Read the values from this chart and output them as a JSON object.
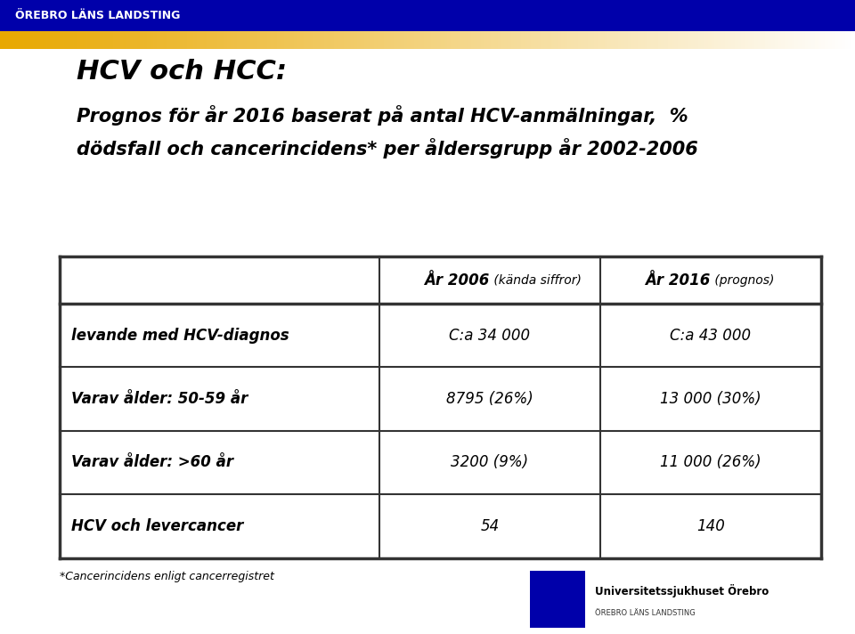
{
  "title_line1": "HCV och HCC:",
  "title_line2": "Prognos för år 2016 baserat på antal HCV-anmälningar,  %",
  "title_line3": "dödsfall och cancerincidens* per åldersgrupp år 2002-2006",
  "header_col2_bold": "År 2006",
  "header_col2_italic": " (kända siffror)",
  "header_col3_bold": "År 2016",
  "header_col3_italic": " (prognos)",
  "rows": [
    [
      "levande med HCV-diagnos",
      "C:a 34 000",
      "C:a 43 000"
    ],
    [
      "Varav ålder: 50-59 år",
      "8795 (26%)",
      "13 000 (30%)"
    ],
    [
      "Varav ålder: >60 år",
      "3200 (9%)",
      "11 000 (26%)"
    ],
    [
      "HCV och levercancer",
      "54",
      "140"
    ]
  ],
  "footnote": "*Cancerincidens enligt cancerregistret",
  "header_bar_color": "#0000AA",
  "header_bar_text": "ÖREBRO LÄNS LANDSTING",
  "header_bar_text_color": "#ffffff",
  "accent_color_left": "#E8A800",
  "accent_color_right": "#ffffff",
  "bg_color": "#ffffff",
  "table_border_color": "#333333",
  "title_color": "#000000",
  "col_splits": [
    0.42,
    0.71
  ]
}
